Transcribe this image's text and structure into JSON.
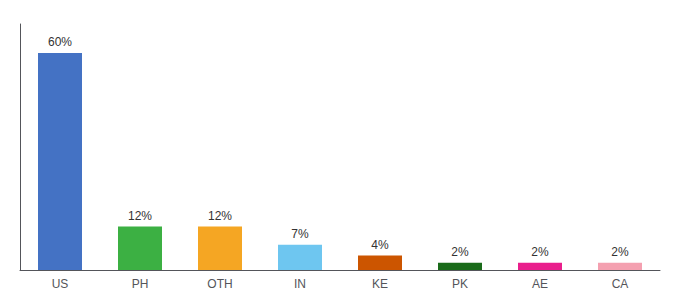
{
  "chart_data": {
    "type": "bar",
    "categories": [
      "US",
      "PH",
      "OTH",
      "IN",
      "KE",
      "PK",
      "AE",
      "CA"
    ],
    "values": [
      60,
      12,
      12,
      7,
      4,
      2,
      2,
      2
    ],
    "value_labels": [
      "60%",
      "12%",
      "12%",
      "7%",
      "4%",
      "2%",
      "2%",
      "2%"
    ],
    "colors": [
      "#4472c4",
      "#3cb043",
      "#f5a623",
      "#6ec6f0",
      "#cc5500",
      "#1a6b1a",
      "#e91e8c",
      "#f4a0b0"
    ],
    "ylim": [
      0,
      68
    ],
    "grid": false,
    "data_labels": true,
    "tick_labels": "x"
  }
}
